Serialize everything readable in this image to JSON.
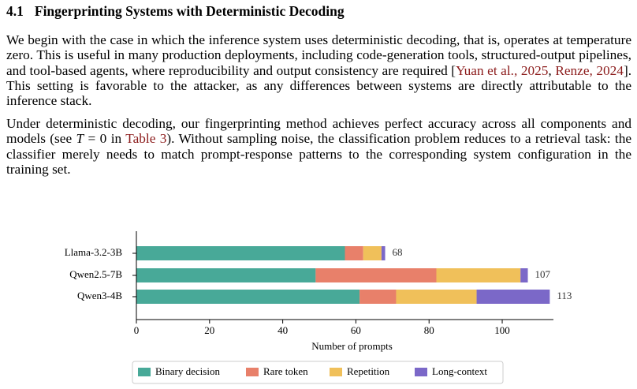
{
  "section": {
    "number": "4.1",
    "title": "Fingerprinting Systems with Deterministic Decoding"
  },
  "paragraphs": [
    [
      "We begin with the case in which the inference system uses deterministic decoding, that is, operates at temperature zero. This is useful in many production deployments, including code-generation tools, structured-output pipelines, and tool-based agents, where reproducibility and output consistency are required [",
      "Yuan et al., 2025",
      ", ",
      "Renze, 2024",
      "]. This setting is favorable to the attacker, as any differences between systems are directly attributable to the inference stack."
    ],
    [
      "Under deterministic decoding, our fingerprinting method achieves perfect accuracy across all components and models (see ",
      "T",
      " = 0 in ",
      "Table 3",
      "). Without sampling noise, the classification problem reduces to a retrieval task: the classifier merely needs to match prompt-response patterns to the corresponding system configuration in the training set."
    ]
  ],
  "chart_data": {
    "type": "stacked-barh",
    "categories": [
      "Llama-3.2-3B",
      "Qwen2.5-7B",
      "Qwen3-4B"
    ],
    "series": [
      {
        "name": "Binary decision",
        "color": "#48a998",
        "values": [
          57,
          49,
          61
        ]
      },
      {
        "name": "Rare token",
        "color": "#e8806a",
        "values": [
          5,
          33,
          10
        ]
      },
      {
        "name": "Repetition",
        "color": "#f0c05a",
        "values": [
          5,
          23,
          22
        ]
      },
      {
        "name": "Long-context",
        "color": "#7b68c8",
        "values": [
          1,
          2,
          20
        ]
      }
    ],
    "totals": [
      68,
      107,
      113
    ],
    "xlabel": "Number of prompts",
    "xlim": [
      0,
      114
    ],
    "xticks": [
      0,
      20,
      40,
      60,
      80,
      100
    ],
    "legend": "bottom"
  }
}
